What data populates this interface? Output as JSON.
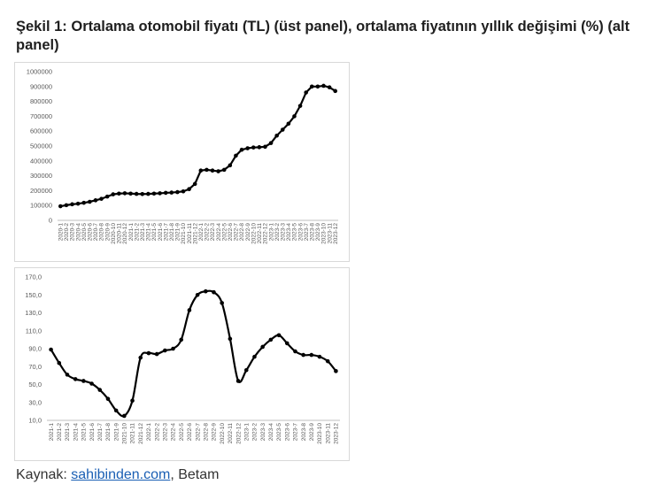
{
  "title": "Şekil 1: Ortalama otomobil fiyatı (TL) (üst panel), ortalama fiyatının yıllık değişimi (%) (alt panel)",
  "source": {
    "prefix": "Kaynak: ",
    "link": "sahibinden.com",
    "suffix": ", Betam"
  },
  "chart_data": [
    {
      "type": "line",
      "title": "",
      "xlabel": "",
      "ylabel": "",
      "ylim": [
        0,
        1000000
      ],
      "yticks": [
        0,
        100000,
        200000,
        300000,
        400000,
        500000,
        600000,
        700000,
        800000,
        900000,
        1000000
      ],
      "grid": false,
      "color": "#000000",
      "x": [
        "2020-1",
        "2020-2",
        "2020-3",
        "2020-4",
        "2020-5",
        "2020-6",
        "2020-7",
        "2020-8",
        "2020-9",
        "2020-10",
        "2020-11",
        "2020-12",
        "2021-1",
        "2021-2",
        "2021-3",
        "2021-4",
        "2021-5",
        "2021-6",
        "2021-7",
        "2021-8",
        "2021-9",
        "2021-10",
        "2021-11",
        "2021-12",
        "2022-1",
        "2022-2",
        "2022-3",
        "2022-4",
        "2022-5",
        "2022-6",
        "2022-7",
        "2022-8",
        "2022-9",
        "2022-10",
        "2022-11",
        "2022-12",
        "2023-1",
        "2023-2",
        "2023-3",
        "2023-4",
        "2023-5",
        "2023-6",
        "2023-7",
        "2023-8",
        "2023-9",
        "2023-10",
        "2023-11",
        "2023-12"
      ],
      "values": [
        95000,
        102000,
        108000,
        112000,
        118000,
        125000,
        135000,
        145000,
        160000,
        175000,
        180000,
        182000,
        180000,
        178000,
        177000,
        178000,
        180000,
        182000,
        185000,
        187000,
        190000,
        195000,
        210000,
        245000,
        335000,
        340000,
        335000,
        330000,
        340000,
        370000,
        435000,
        475000,
        485000,
        490000,
        492000,
        495000,
        520000,
        570000,
        610000,
        650000,
        700000,
        770000,
        860000,
        900000,
        900000,
        905000,
        895000,
        870000
      ]
    },
    {
      "type": "line",
      "title": "",
      "xlabel": "",
      "ylabel": "",
      "ylim": [
        10,
        170
      ],
      "yticks": [
        "10,0",
        "30,0",
        "50,0",
        "70,0",
        "90,0",
        "110,0",
        "130,0",
        "150,0",
        "170,0"
      ],
      "grid": false,
      "color": "#000000",
      "x": [
        "2021-1",
        "2021-2",
        "2021-3",
        "2021-4",
        "2021-5",
        "2021-6",
        "2021-7",
        "2021-8",
        "2021-9",
        "2021-10",
        "2021-11",
        "2021-12",
        "2022-1",
        "2022-2",
        "2022-3",
        "2022-4",
        "2022-5",
        "2022-6",
        "2022-7",
        "2022-8",
        "2022-9",
        "2022-10",
        "2022-11",
        "2022-12",
        "2023-1",
        "2023-2",
        "2023-3",
        "2023-4",
        "2023-5",
        "2023-6",
        "2023-7",
        "2023-8",
        "2023-9",
        "2023-10",
        "2023-11",
        "2023-12"
      ],
      "values": [
        89,
        74,
        61,
        56,
        54,
        51,
        44,
        34,
        21,
        15,
        32,
        80,
        85,
        84,
        88,
        90,
        100,
        133,
        150,
        154,
        153,
        141,
        101,
        54,
        66,
        81,
        92,
        100,
        105,
        96,
        87,
        83,
        83,
        81,
        76,
        65
      ]
    }
  ]
}
